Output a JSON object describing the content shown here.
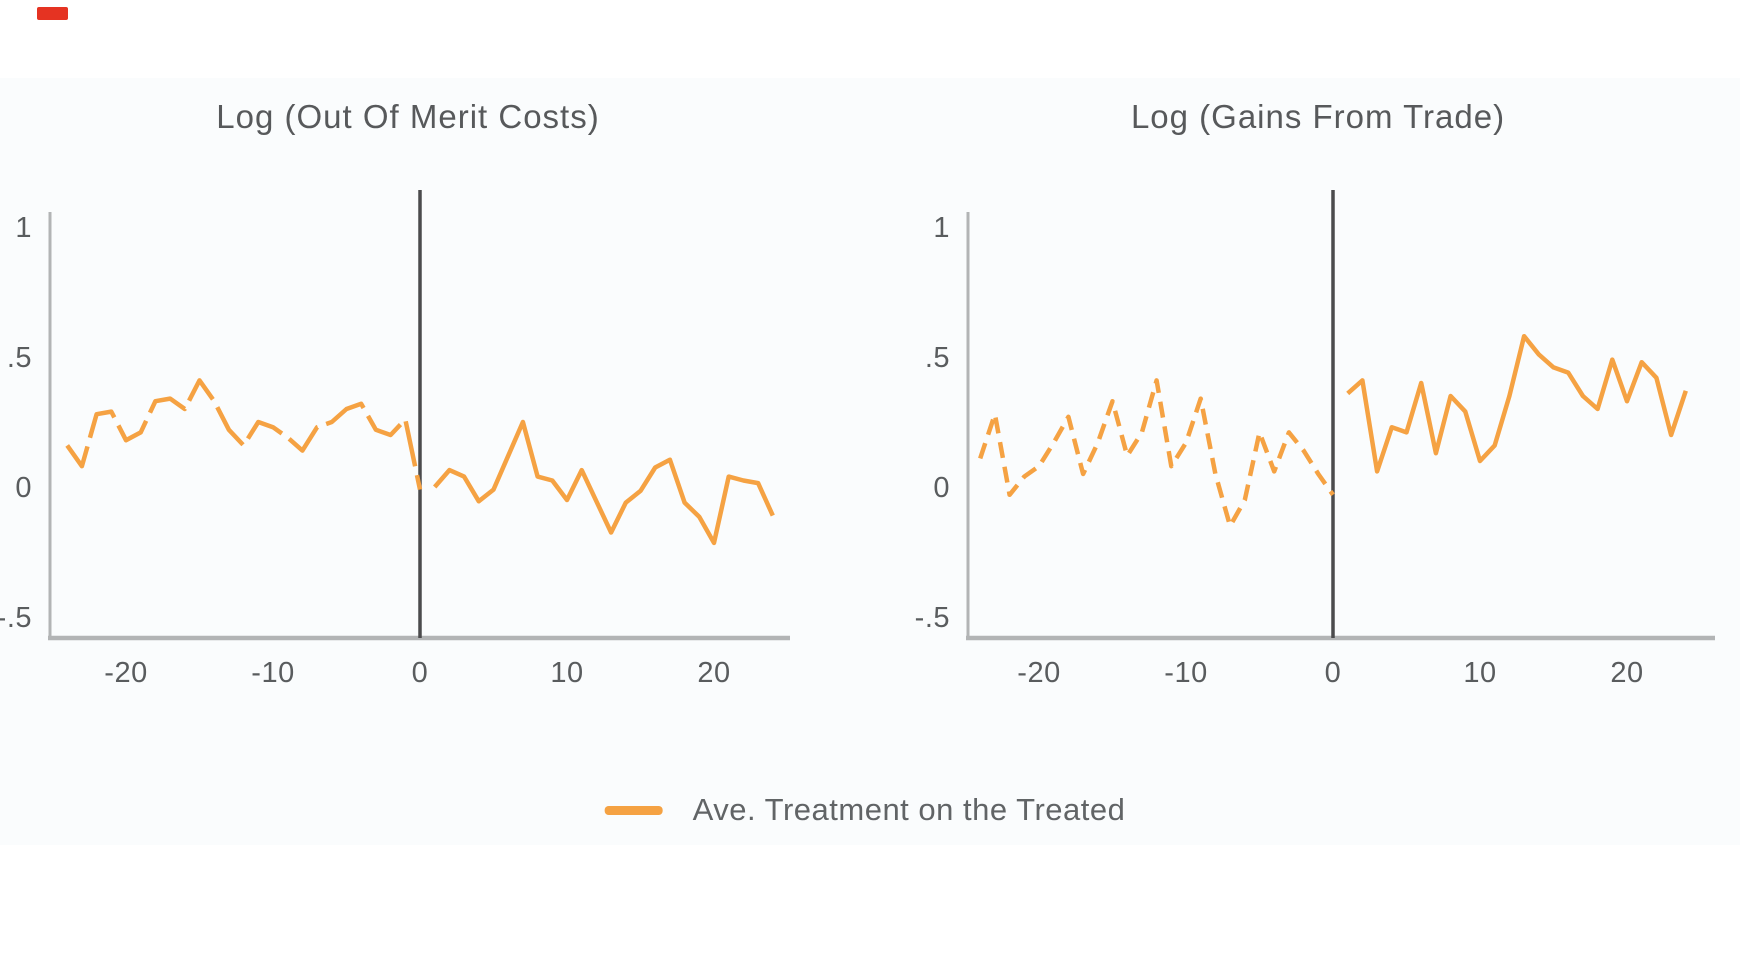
{
  "page": {
    "background_color": "#ffffff",
    "card_background_color": "#fafcfd",
    "top_left_marker_color": "#e53322"
  },
  "colors": {
    "series_line": "#F5A243",
    "axis_line": "#b2b4b5",
    "treatment_reference_line": "#4b4b4d",
    "tick_text": "#595c5e",
    "title_text": "#57595b"
  },
  "charts": [
    {
      "title": "Log (Out Of Merit Costs)"
    },
    {
      "title": "Log (Gains From Trade)"
    }
  ],
  "legend": {
    "label": "Ave. Treatment on the Treated"
  },
  "chart_data": [
    {
      "type": "line",
      "title": "Log (Out Of Merit Costs)",
      "xlabel": "",
      "ylabel": "",
      "x_range": [
        -24,
        24
      ],
      "ylim": [
        -0.58,
        1.06
      ],
      "grid": false,
      "reference_line_x": 0,
      "y_axis_ticks": [
        {
          "label": "1",
          "value": 1
        },
        {
          "label": ".5",
          "value": 0.5
        },
        {
          "label": "0",
          "value": 0
        },
        {
          "label": "-.5",
          "value": -0.5
        }
      ],
      "x_axis_ticks": [
        {
          "label": "-20",
          "value": -20
        },
        {
          "label": "-10",
          "value": -10
        },
        {
          "label": "0",
          "value": 0
        },
        {
          "label": "10",
          "value": 10
        },
        {
          "label": "20",
          "value": 20
        }
      ],
      "series": [
        {
          "name": "Ave. Treatment on the Treated (pre-period, dashed)",
          "style": "dashed",
          "x": [
            -24,
            -23,
            -22,
            -21,
            -20,
            -19,
            -18,
            -17,
            -16,
            -15,
            -14,
            -13,
            -12,
            -11,
            -10,
            -9,
            -8,
            -7,
            -6,
            -5,
            -4,
            -3,
            -2,
            -1,
            0
          ],
          "y": [
            0.16,
            0.08,
            0.28,
            0.29,
            0.18,
            0.21,
            0.33,
            0.34,
            0.3,
            0.41,
            0.33,
            0.22,
            0.16,
            0.25,
            0.23,
            0.19,
            0.14,
            0.23,
            0.25,
            0.3,
            0.32,
            0.22,
            0.2,
            0.26,
            -0.01
          ]
        },
        {
          "name": "Ave. Treatment on the Treated (post-period, solid)",
          "style": "solid",
          "x": [
            1,
            2,
            3,
            4,
            5,
            6,
            7,
            8,
            9,
            10,
            11,
            12,
            13,
            14,
            15,
            16,
            17,
            18,
            19,
            20,
            21,
            22,
            23,
            24
          ],
          "y": [
            0.0,
            0.065,
            0.04,
            -0.055,
            -0.01,
            0.12,
            0.25,
            0.04,
            0.025,
            -0.05,
            0.065,
            -0.055,
            -0.175,
            -0.06,
            -0.015,
            0.075,
            0.105,
            -0.06,
            -0.115,
            -0.215,
            0.04,
            0.025,
            0.015,
            -0.11
          ]
        }
      ]
    },
    {
      "type": "line",
      "title": "Log (Gains From Trade)",
      "xlabel": "",
      "ylabel": "",
      "x_range": [
        -24,
        24
      ],
      "ylim": [
        -0.58,
        1.06
      ],
      "grid": false,
      "reference_line_x": 0,
      "y_axis_ticks": [
        {
          "label": "1",
          "value": 1
        },
        {
          "label": ".5",
          "value": 0.5
        },
        {
          "label": "0",
          "value": 0
        },
        {
          "label": "-.5",
          "value": -0.5
        }
      ],
      "x_axis_ticks": [
        {
          "label": "-20",
          "value": -20
        },
        {
          "label": "-10",
          "value": -10
        },
        {
          "label": "0",
          "value": 0
        },
        {
          "label": "10",
          "value": 10
        },
        {
          "label": "20",
          "value": 20
        }
      ],
      "series": [
        {
          "name": "Ave. Treatment on the Treated (pre-period, dashed)",
          "style": "dashed",
          "x": [
            -24,
            -23,
            -22,
            -21,
            -20,
            -19,
            -18,
            -17,
            -16,
            -15,
            -14,
            -13,
            -12,
            -11,
            -10,
            -9,
            -8,
            -7,
            -6,
            -5,
            -4,
            -3,
            -2,
            -1,
            0
          ],
          "y": [
            0.11,
            0.28,
            -0.03,
            0.04,
            0.08,
            0.17,
            0.27,
            0.05,
            0.17,
            0.33,
            0.12,
            0.21,
            0.41,
            0.08,
            0.17,
            0.34,
            0.05,
            -0.15,
            -0.05,
            0.21,
            0.06,
            0.21,
            0.14,
            0.05,
            -0.03
          ]
        },
        {
          "name": "Ave. Treatment on the Treated (post-period, solid)",
          "style": "solid",
          "x": [
            1,
            2,
            3,
            4,
            5,
            6,
            7,
            8,
            9,
            10,
            11,
            12,
            13,
            14,
            15,
            16,
            17,
            18,
            19,
            20,
            21,
            22,
            23,
            24
          ],
          "y": [
            0.36,
            0.41,
            0.06,
            0.23,
            0.21,
            0.4,
            0.13,
            0.35,
            0.29,
            0.1,
            0.16,
            0.35,
            0.58,
            0.51,
            0.46,
            0.44,
            0.35,
            0.3,
            0.49,
            0.33,
            0.48,
            0.42,
            0.2,
            0.37
          ]
        }
      ]
    }
  ]
}
